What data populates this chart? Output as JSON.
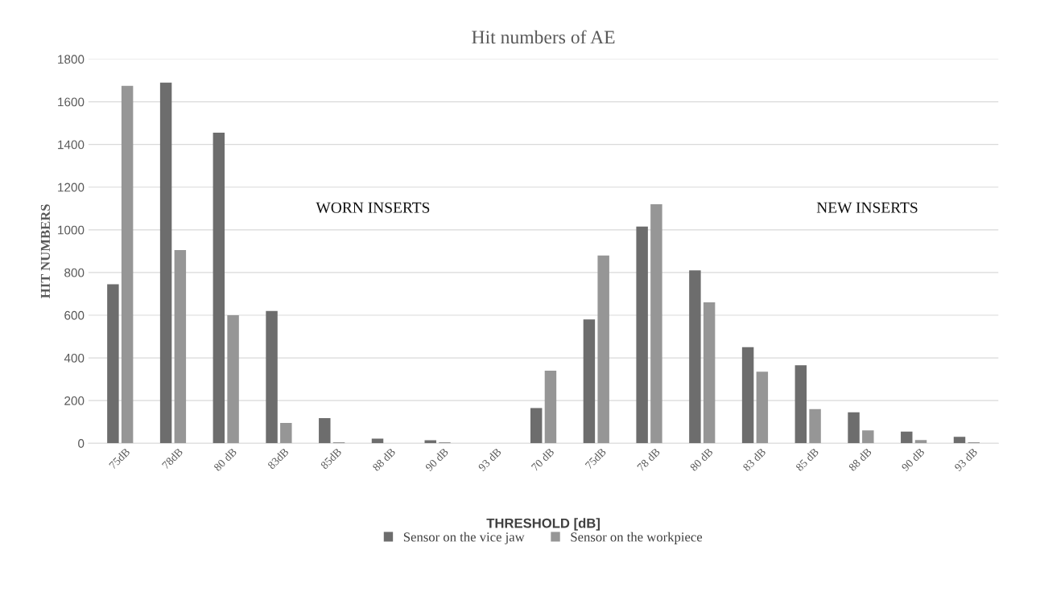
{
  "chart_data": {
    "type": "bar",
    "title": "Hit numbers of AE",
    "xlabel": "THRESHOLD [dB]",
    "ylabel": "HIT NUMBERS",
    "categories": [
      "75dB",
      "78dB",
      "80 dB",
      "83dB",
      "85dB",
      "88 dB",
      "90 dB",
      "93 dB",
      "70 dB",
      "75dB",
      "78 dB",
      "80 dB",
      "83 dB",
      "85 dB",
      "88 dB",
      "90 dB",
      "93 dB"
    ],
    "series": [
      {
        "name": "Sensor on the vice jaw",
        "color": "#6d6d6d",
        "values": [
          745,
          1690,
          1455,
          620,
          118,
          22,
          14,
          0,
          165,
          580,
          1015,
          810,
          450,
          365,
          145,
          55,
          30
        ]
      },
      {
        "name": "Sensor on the workpiece",
        "color": "#969696",
        "values": [
          1675,
          905,
          600,
          95,
          5,
          0,
          5,
          0,
          340,
          880,
          1120,
          660,
          335,
          160,
          60,
          15,
          5
        ]
      }
    ],
    "ylim": [
      0,
      1800
    ],
    "yticks": [
      0,
      200,
      400,
      600,
      800,
      1000,
      1200,
      1400,
      1600,
      1800
    ],
    "grid": "y",
    "legend": "bottom",
    "annotations": [
      "WORN INSERTS",
      "NEW INSERTS"
    ]
  }
}
